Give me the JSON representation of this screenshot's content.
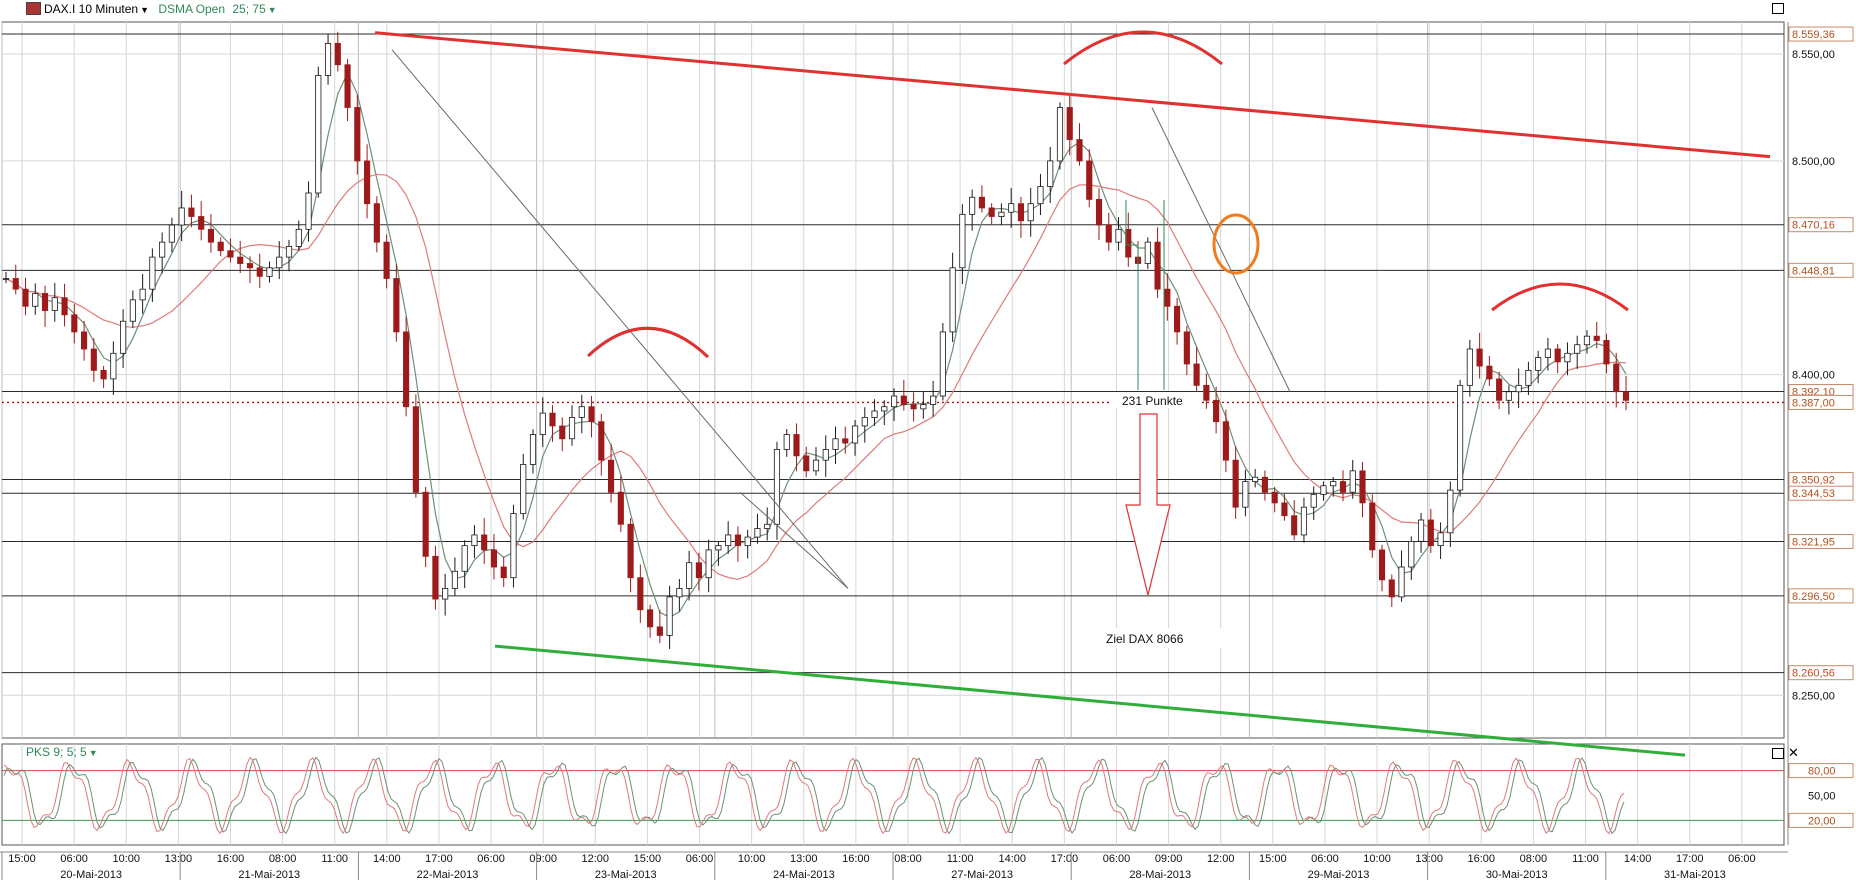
{
  "header": {
    "symbol": "DAX.I 10 Minuten",
    "indicator": "DSMA Open",
    "indicator_params": "25; 75",
    "sub_indicator": "PKS 9; 5; 5"
  },
  "annotations": {
    "points_label": "231 Punkte",
    "target_label": "Ziel DAX 8066"
  },
  "colors": {
    "resistance": "#e03030",
    "support": "#2fae3a",
    "candle_up": "#1a1a1a",
    "candle_down": "#9e1b1b",
    "sma_fast": "#6f8f78",
    "sma_slow": "#e07a7a",
    "oscillator_k": "#6f8f78",
    "oscillator_d": "#e07a7a",
    "circle": "#f07c1e",
    "price_tag_text": "#b5501e"
  },
  "icons": {
    "symbol_icon": "chart-symbol-icon",
    "maximize": "maximize-icon",
    "close": "close-icon"
  },
  "chart_data": {
    "type": "candlestick",
    "title": "DAX.I 10 Minuten",
    "ylim": [
      8230,
      8565
    ],
    "x_date_labels": [
      "20-Mai-2013",
      "21-Mai-2013",
      "22-Mai-2013",
      "23-Mai-2013",
      "24-Mai-2013",
      "27-Mai-2013",
      "28-Mai-2013",
      "29-Mai-2013",
      "30-Mai-2013",
      "31-Mai-2013"
    ],
    "x_time_labels": [
      "15:00",
      "06:00",
      "10:00",
      "13:00",
      "16:00",
      "08:00",
      "11:00",
      "14:00",
      "17:00",
      "06:00",
      "09:00",
      "12:00",
      "15:00",
      "06:00",
      "10:00",
      "13:00",
      "16:00",
      "08:00",
      "11:00",
      "14:00",
      "17:00",
      "06:00",
      "09:00",
      "12:00",
      "15:00",
      "06:00",
      "10:00",
      "13:00",
      "16:00",
      "08:00",
      "11:00",
      "14:00",
      "17:00",
      "06:00"
    ],
    "y_ticks": [
      "8.550,00",
      "8.500,00",
      "8.400,00",
      "8.250,00"
    ],
    "price_levels": [
      "8.559,36",
      "8.470,16",
      "8.448,81",
      "8.392,10",
      "8.387,00",
      "8.350,92",
      "8.344,53",
      "8.321,95",
      "8.296,50",
      "8.260,56"
    ],
    "current_price": "8.387,00",
    "close_series": [
      8445,
      8440,
      8432,
      8438,
      8430,
      8436,
      8428,
      8420,
      8412,
      8402,
      8398,
      8410,
      8425,
      8435,
      8440,
      8455,
      8462,
      8470,
      8478,
      8474,
      8468,
      8462,
      8458,
      8455,
      8452,
      8450,
      8446,
      8450,
      8455,
      8460,
      8468,
      8485,
      8540,
      8555,
      8545,
      8525,
      8500,
      8480,
      8462,
      8445,
      8420,
      8385,
      8345,
      8315,
      8295,
      8300,
      8308,
      8320,
      8325,
      8318,
      8310,
      8305,
      8335,
      8358,
      8372,
      8382,
      8376,
      8370,
      8380,
      8385,
      8378,
      8360,
      8345,
      8330,
      8305,
      8290,
      8282,
      8278,
      8296,
      8300,
      8312,
      8305,
      8318,
      8320,
      8325,
      8320,
      8324,
      8328,
      8330,
      8365,
      8372,
      8362,
      8355,
      8360,
      8365,
      8370,
      8368,
      8376,
      8380,
      8383,
      8385,
      8390,
      8386,
      8384,
      8386,
      8390,
      8420,
      8450,
      8475,
      8483,
      8478,
      8474,
      8476,
      8480,
      8472,
      8480,
      8488,
      8500,
      8525,
      8510,
      8500,
      8482,
      8470,
      8462,
      8468,
      8455,
      8452,
      8462,
      8440,
      8432,
      8420,
      8405,
      8395,
      8388,
      8378,
      8360,
      8338,
      8350,
      8352,
      8345,
      8340,
      8334,
      8325,
      8338,
      8344,
      8348,
      8350,
      8345,
      8355,
      8340,
      8318,
      8304,
      8296,
      8310,
      8322,
      8332,
      8320,
      8326,
      8346,
      8395,
      8412,
      8404,
      8398,
      8388,
      8392,
      8395,
      8402,
      8408,
      8412,
      8406,
      8410,
      8414,
      8418,
      8416,
      8405,
      8392,
      8388
    ]
  }
}
